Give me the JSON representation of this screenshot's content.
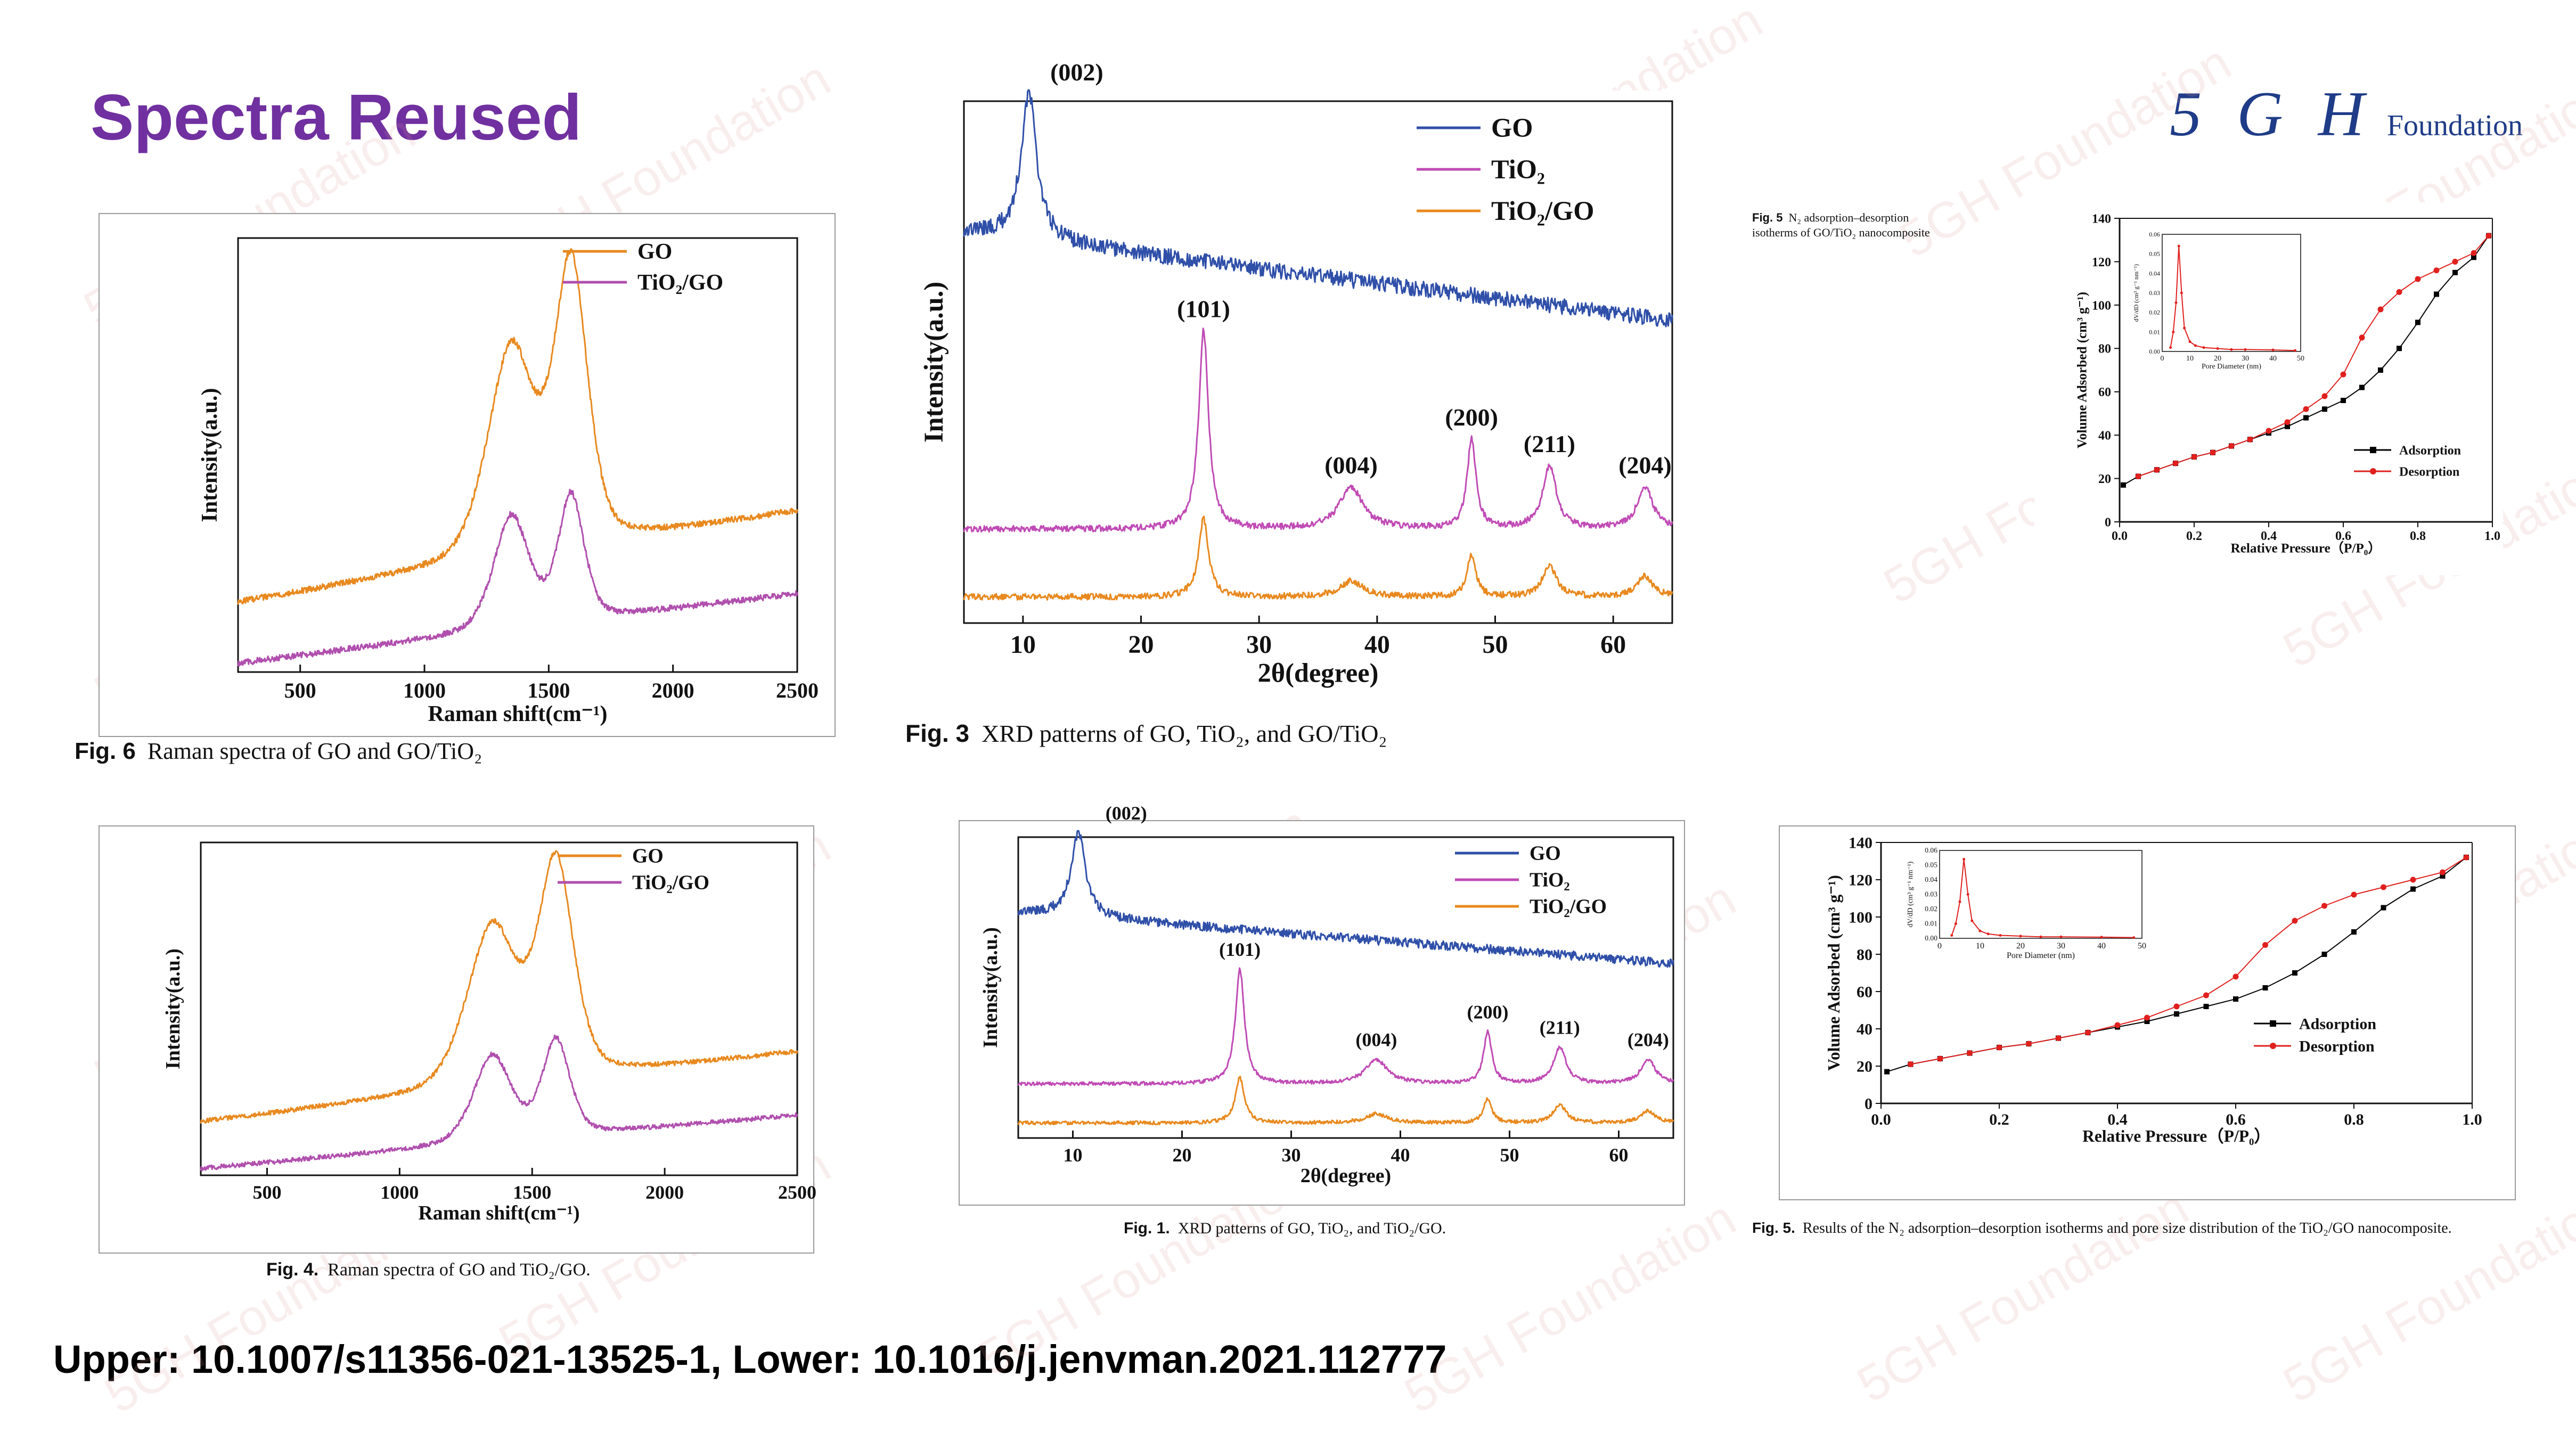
{
  "slide": {
    "title": "Spectra Reused",
    "logo_mark": "5 G H",
    "logo_text": "Foundation",
    "footer": "Upper: 10.1007/s11356-021-13525-1, Lower: 10.1016/j.jenvman.2021.112777",
    "watermark": "5GH Foundation"
  },
  "colors": {
    "title": "#7030a0",
    "GO": "#e8891f",
    "TiO2/GO": "#b04fae",
    "GO_xrd": "#2f4fa8",
    "TiO2": "#c04bb5",
    "Adsorption": "#000000",
    "Desorption": "#e0201e"
  },
  "captions": {
    "upper_raman": {
      "label": "Fig. 6",
      "text": "Raman spectra of GO and GO/TiO₂"
    },
    "upper_xrd": {
      "label": "Fig. 3",
      "text": "XRD patterns of GO, TiO₂, and GO/TiO₂"
    },
    "upper_bet": {
      "label": "Fig. 5",
      "text": "N₂ adsorption–desorption isotherms of GO/TiO₂ nanocomposite"
    },
    "lower_raman": {
      "label": "Fig. 4.",
      "text": "Raman spectra of GO and TiO₂/GO."
    },
    "lower_xrd": {
      "label": "Fig. 1.",
      "text": "XRD patterns of GO, TiO₂, and TiO₂/GO."
    },
    "lower_bet": {
      "label": "Fig. 5.",
      "text": "Results of the N₂ adsorption–desorption isotherms and pore size distribution of the TiO₂/GO nanocomposite."
    }
  },
  "chart_data": [
    {
      "id": "upper_raman",
      "type": "line",
      "xlabel": "Raman shift(cm⁻¹)",
      "ylabel": "Intensity(a.u.)",
      "xlim": [
        250,
        2500
      ],
      "xticks": [
        500,
        1000,
        1500,
        2000,
        2500
      ],
      "y_ticks_shown": false,
      "legend_position": "top-right",
      "peaks": {
        "D": 1350,
        "G": 1590
      },
      "series": [
        {
          "name": "GO",
          "baseline": [
            0.16,
            0.37
          ],
          "peak_heights": [
            0.48,
            0.64
          ],
          "peak_widths": [
            100,
            70
          ]
        },
        {
          "name": "TiO₂/GO",
          "baseline": [
            0.02,
            0.18
          ],
          "peak_heights": [
            0.26,
            0.29
          ],
          "peak_widths": [
            75,
            55
          ]
        }
      ]
    },
    {
      "id": "upper_xrd",
      "type": "line",
      "xlabel": "2θ(degree)",
      "ylabel": "Intensity(a.u.)",
      "xlim": [
        5,
        65
      ],
      "xticks": [
        10,
        20,
        30,
        40,
        50,
        60
      ],
      "y_ticks_shown": false,
      "legend_position": "top-right",
      "peak_labels": [
        {
          "text": "(002)",
          "x": 10.5
        },
        {
          "text": "(101)",
          "x": 25.3
        },
        {
          "text": "(004)",
          "x": 37.8
        },
        {
          "text": "(200)",
          "x": 48.0
        },
        {
          "text": "(211)",
          "x": 54.6
        },
        {
          "text": "(204)",
          "x": 62.7
        }
      ],
      "series": [
        {
          "name": "GO",
          "baseline": [
            0.75,
            0.58
          ],
          "peaks": [
            [
              10.5,
              0.28,
              0.8
            ]
          ]
        },
        {
          "name": "TiO₂",
          "baseline": [
            0.18,
            0.18
          ],
          "peaks": [
            [
              25.3,
              0.38,
              0.5
            ],
            [
              37.8,
              0.08,
              1.2
            ],
            [
              48.0,
              0.17,
              0.45
            ],
            [
              54.6,
              0.12,
              0.7
            ],
            [
              62.7,
              0.08,
              0.8
            ]
          ]
        },
        {
          "name": "TiO₂/GO",
          "baseline": [
            0.05,
            0.05
          ],
          "peaks": [
            [
              25.3,
              0.15,
              0.5
            ],
            [
              37.8,
              0.03,
              1.2
            ],
            [
              48.0,
              0.08,
              0.45
            ],
            [
              54.6,
              0.06,
              0.7
            ],
            [
              62.7,
              0.04,
              0.8
            ]
          ]
        }
      ]
    },
    {
      "id": "upper_bet",
      "type": "line",
      "xlabel": "Relative Pressure（P/P₀）",
      "ylabel": "Volume Adsorbed (cm³ g⁻¹)",
      "xlim": [
        0,
        1.0
      ],
      "ylim": [
        0,
        140
      ],
      "xticks": [
        0.0,
        0.2,
        0.4,
        0.6,
        0.8,
        1.0
      ],
      "xtick_labels": [
        "0.0",
        "0.2",
        "0.4",
        "0.6",
        "0.8",
        "1.0"
      ],
      "yticks": [
        0,
        20,
        40,
        60,
        80,
        100,
        120,
        140
      ],
      "legend_position": "lower-right",
      "series": [
        {
          "name": "Adsorption",
          "x": [
            0.01,
            0.05,
            0.1,
            0.15,
            0.2,
            0.25,
            0.3,
            0.35,
            0.4,
            0.45,
            0.5,
            0.55,
            0.6,
            0.65,
            0.7,
            0.75,
            0.8,
            0.85,
            0.9,
            0.95,
            0.99
          ],
          "y": [
            17,
            21,
            24,
            27,
            30,
            32,
            35,
            38,
            41,
            44,
            48,
            52,
            56,
            62,
            70,
            80,
            92,
            105,
            115,
            122,
            132
          ]
        },
        {
          "name": "Desorption",
          "x": [
            0.99,
            0.95,
            0.9,
            0.85,
            0.8,
            0.75,
            0.7,
            0.65,
            0.6,
            0.55,
            0.5,
            0.45,
            0.4,
            0.35,
            0.3,
            0.25,
            0.2,
            0.15,
            0.1,
            0.05
          ],
          "y": [
            132,
            124,
            120,
            116,
            112,
            106,
            98,
            85,
            68,
            58,
            52,
            46,
            42,
            38,
            35,
            32,
            30,
            27,
            24,
            21
          ]
        }
      ],
      "inset": {
        "xlabel": "Pore Diameter (nm)",
        "ylabel": "dV/dD (cm³ g⁻¹ nm⁻¹)",
        "xlim": [
          0,
          50
        ],
        "ylim": [
          0,
          0.06
        ],
        "xticks": [
          0,
          10,
          20,
          30,
          40,
          50
        ],
        "yticks": [
          0.0,
          0.01,
          0.02,
          0.03,
          0.04,
          0.05,
          0.06
        ],
        "x": [
          3,
          4,
          5,
          6,
          7,
          8,
          10,
          12,
          15,
          20,
          25,
          30,
          40,
          48
        ],
        "y": [
          0.002,
          0.01,
          0.025,
          0.054,
          0.03,
          0.012,
          0.005,
          0.003,
          0.002,
          0.0015,
          0.001,
          0.001,
          0.0008,
          0.0005
        ]
      }
    },
    {
      "id": "lower_raman",
      "type": "line",
      "xlabel": "Raman shift(cm⁻¹)",
      "ylabel": "Intensity(a.u.)",
      "xlim": [
        250,
        2500
      ],
      "xticks": [
        500,
        1000,
        1500,
        2000,
        2500
      ],
      "y_ticks_shown": false,
      "legend_position": "top-right",
      "peaks": {
        "D": 1350,
        "G": 1590
      },
      "series": [
        {
          "name": "GO",
          "baseline": [
            0.16,
            0.37
          ],
          "peak_heights": [
            0.48,
            0.64
          ],
          "peak_widths": [
            100,
            70
          ]
        },
        {
          "name": "TiO₂/GO",
          "baseline": [
            0.02,
            0.18
          ],
          "peak_heights": [
            0.26,
            0.29
          ],
          "peak_widths": [
            75,
            55
          ]
        }
      ]
    },
    {
      "id": "lower_xrd",
      "type": "line",
      "xlabel": "2θ(degree)",
      "ylabel": "Intensity(a.u.)",
      "xlim": [
        5,
        65
      ],
      "xticks": [
        10,
        20,
        30,
        40,
        50,
        60
      ],
      "y_ticks_shown": false,
      "legend_position": "top-right",
      "peak_labels": [
        {
          "text": "(002)",
          "x": 10.5
        },
        {
          "text": "(101)",
          "x": 25.3
        },
        {
          "text": "(004)",
          "x": 37.8
        },
        {
          "text": "(200)",
          "x": 48.0
        },
        {
          "text": "(211)",
          "x": 54.6
        },
        {
          "text": "(204)",
          "x": 62.7
        }
      ],
      "series": [
        {
          "name": "GO",
          "baseline": [
            0.75,
            0.58
          ],
          "peaks": [
            [
              10.5,
              0.28,
              0.8
            ]
          ]
        },
        {
          "name": "TiO₂",
          "baseline": [
            0.18,
            0.18
          ],
          "peaks": [
            [
              25.3,
              0.38,
              0.5
            ],
            [
              37.8,
              0.08,
              1.2
            ],
            [
              48.0,
              0.17,
              0.45
            ],
            [
              54.6,
              0.12,
              0.7
            ],
            [
              62.7,
              0.08,
              0.8
            ]
          ]
        },
        {
          "name": "TiO₂/GO",
          "baseline": [
            0.05,
            0.05
          ],
          "peaks": [
            [
              25.3,
              0.15,
              0.5
            ],
            [
              37.8,
              0.03,
              1.2
            ],
            [
              48.0,
              0.08,
              0.45
            ],
            [
              54.6,
              0.06,
              0.7
            ],
            [
              62.7,
              0.04,
              0.8
            ]
          ]
        }
      ]
    },
    {
      "id": "lower_bet",
      "type": "line",
      "xlabel": "Relative Pressure（P/P₀）",
      "ylabel": "Volume Adsorbed (cm³ g⁻¹)",
      "xlim": [
        0,
        1.0
      ],
      "ylim": [
        0,
        140
      ],
      "xticks": [
        0.0,
        0.2,
        0.4,
        0.6,
        0.8,
        1.0
      ],
      "xtick_labels": [
        "0.0",
        "0.2",
        "0.4",
        "0.6",
        "0.8",
        "1.0"
      ],
      "yticks": [
        0,
        20,
        40,
        60,
        80,
        100,
        120,
        140
      ],
      "legend_position": "lower-right",
      "series": [
        {
          "name": "Adsorption",
          "x": [
            0.01,
            0.05,
            0.1,
            0.15,
            0.2,
            0.25,
            0.3,
            0.35,
            0.4,
            0.45,
            0.5,
            0.55,
            0.6,
            0.65,
            0.7,
            0.75,
            0.8,
            0.85,
            0.9,
            0.95,
            0.99
          ],
          "y": [
            17,
            21,
            24,
            27,
            30,
            32,
            35,
            38,
            41,
            44,
            48,
            52,
            56,
            62,
            70,
            80,
            92,
            105,
            115,
            122,
            132
          ]
        },
        {
          "name": "Desorption",
          "x": [
            0.99,
            0.95,
            0.9,
            0.85,
            0.8,
            0.75,
            0.7,
            0.65,
            0.6,
            0.55,
            0.5,
            0.45,
            0.4,
            0.35,
            0.3,
            0.25,
            0.2,
            0.15,
            0.1,
            0.05
          ],
          "y": [
            132,
            124,
            120,
            116,
            112,
            106,
            98,
            85,
            68,
            58,
            52,
            46,
            42,
            38,
            35,
            32,
            30,
            27,
            24,
            21
          ]
        }
      ],
      "inset": {
        "xlabel": "Pore Diameter (nm)",
        "ylabel": "dV/dD (cm³ g⁻¹ nm⁻¹)",
        "xlim": [
          0,
          50
        ],
        "ylim": [
          0,
          0.06
        ],
        "xticks": [
          0,
          10,
          20,
          30,
          40,
          50
        ],
        "yticks": [
          0.0,
          0.01,
          0.02,
          0.03,
          0.04,
          0.05,
          0.06
        ],
        "x": [
          3,
          4,
          5,
          6,
          7,
          8,
          10,
          12,
          15,
          20,
          25,
          30,
          40,
          48
        ],
        "y": [
          0.002,
          0.01,
          0.025,
          0.054,
          0.03,
          0.012,
          0.005,
          0.003,
          0.002,
          0.0015,
          0.001,
          0.001,
          0.0008,
          0.0005
        ]
      }
    }
  ]
}
